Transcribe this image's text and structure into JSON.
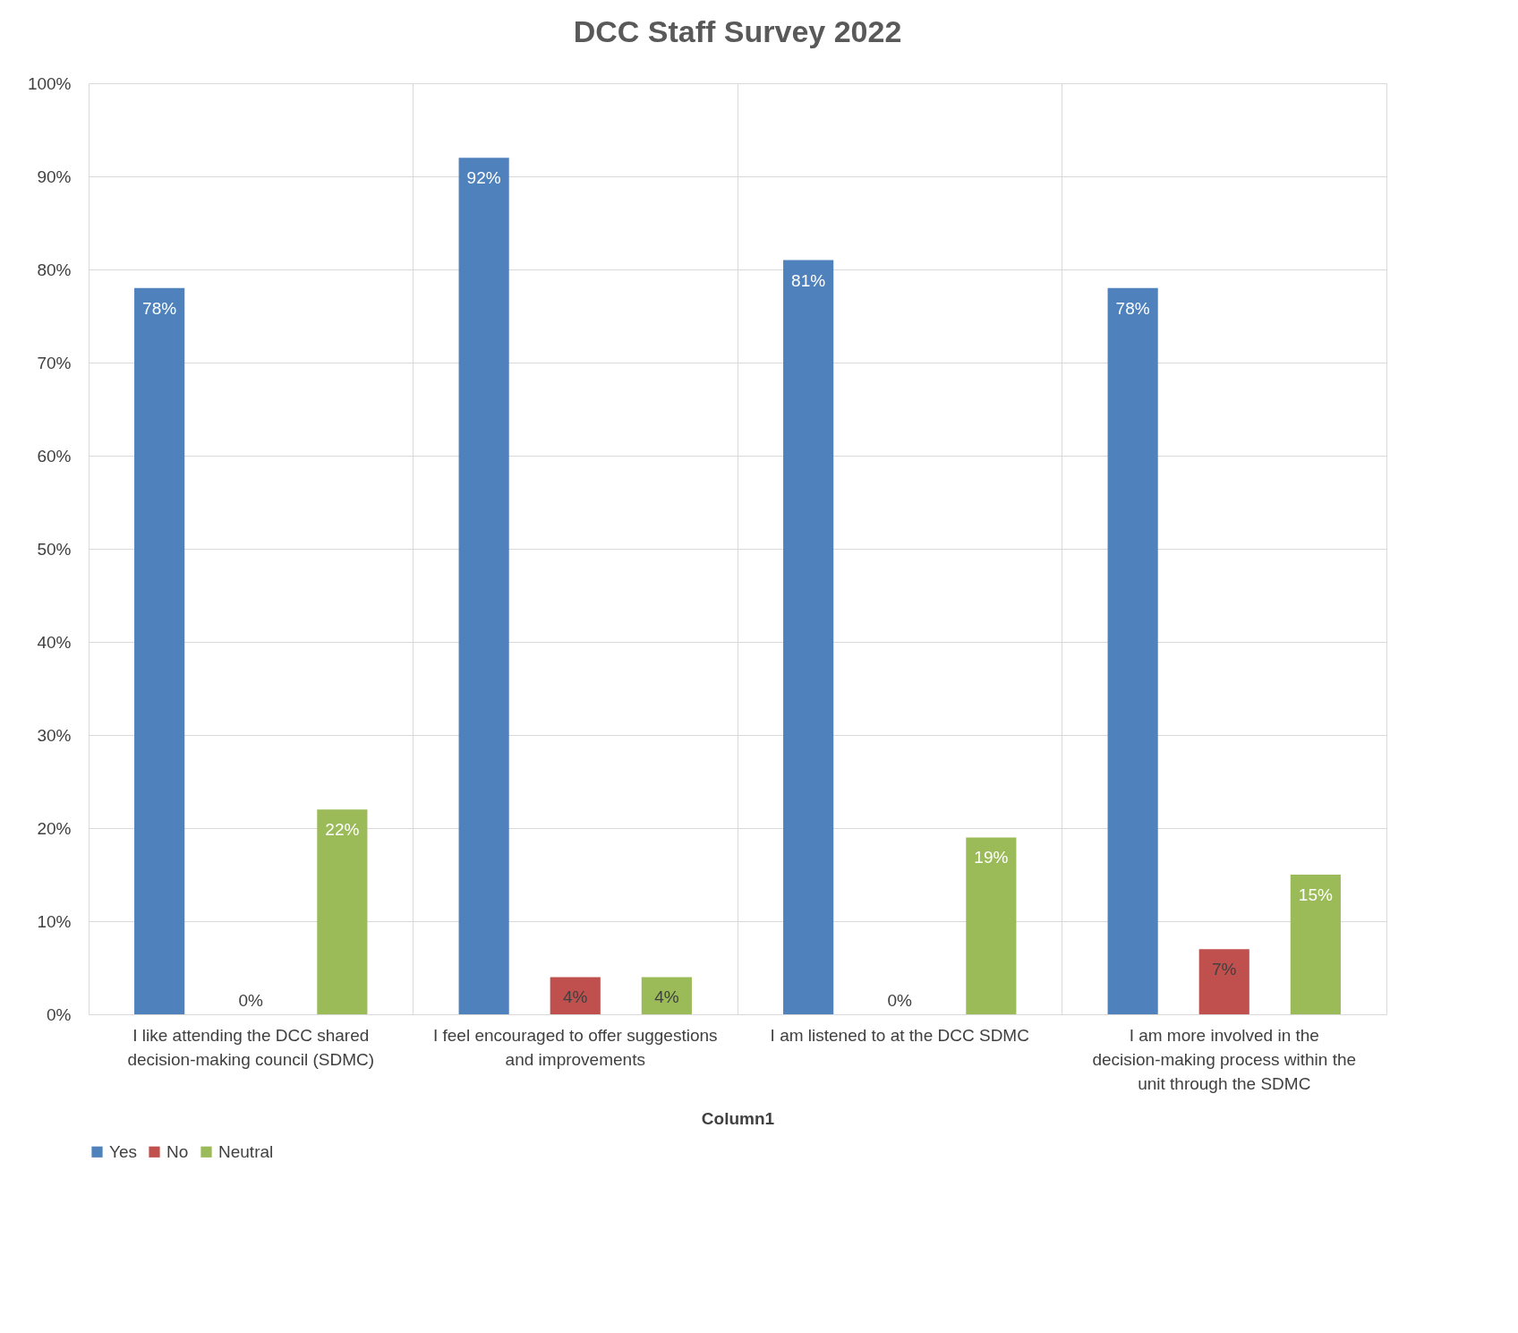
{
  "chart_data": {
    "type": "bar",
    "title": "DCC Staff Survey 2022",
    "xlabel": "Column1",
    "categories": [
      "I like attending the DCC shared decision-making council (SDMC)",
      "I feel encouraged to offer suggestions and improvements",
      "I am listened to at the DCC SDMC",
      "I am more involved in the decision-making process within the unit through the SDMC"
    ],
    "series": [
      {
        "name": "Yes",
        "color": "#4f81bd",
        "values": [
          78,
          92,
          81,
          78
        ],
        "value_labels": [
          "78%",
          "92%",
          "81%",
          "78%"
        ]
      },
      {
        "name": "No",
        "color": "#c0504d",
        "values": [
          0,
          4,
          0,
          7
        ],
        "value_labels": [
          "0%",
          "4%",
          "0%",
          "7%"
        ]
      },
      {
        "name": "Neutral",
        "color": "#9bbb59",
        "values": [
          22,
          4,
          19,
          15
        ],
        "value_labels": [
          "22%",
          "4%",
          "19%",
          "15%"
        ]
      }
    ],
    "ylim": [
      0,
      100
    ],
    "yticks": [
      {
        "value": 0,
        "label": "0%"
      },
      {
        "value": 10,
        "label": "10%"
      },
      {
        "value": 20,
        "label": "20%"
      },
      {
        "value": 30,
        "label": "30%"
      },
      {
        "value": 40,
        "label": "40%"
      },
      {
        "value": 50,
        "label": "50%"
      },
      {
        "value": 60,
        "label": "60%"
      },
      {
        "value": 70,
        "label": "70%"
      },
      {
        "value": 80,
        "label": "80%"
      },
      {
        "value": 90,
        "label": "90%"
      },
      {
        "value": 100,
        "label": "100%"
      }
    ],
    "grid": true,
    "legend": "bottom"
  }
}
